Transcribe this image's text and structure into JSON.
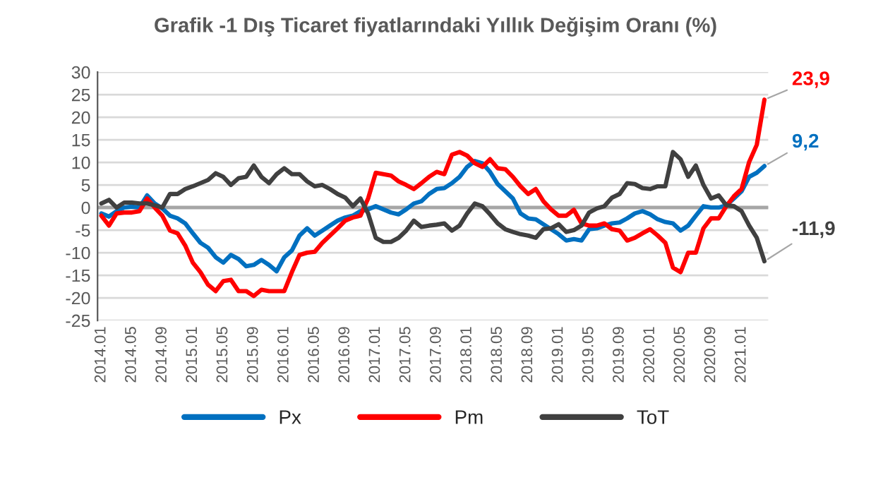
{
  "chart_data": {
    "type": "line",
    "title": "Grafik -1 Dış Ticaret fiyatlarındaki Yıllık Değişim Oranı (%)",
    "categories": [
      "2014.01",
      null,
      null,
      null,
      "2014.05",
      null,
      null,
      null,
      "2014.09",
      null,
      null,
      null,
      "2015.01",
      null,
      null,
      null,
      "2015.05",
      null,
      null,
      null,
      "2015.09",
      null,
      null,
      null,
      "2016.01",
      null,
      null,
      null,
      "2016.05",
      null,
      null,
      null,
      "2016.09",
      null,
      null,
      null,
      "2017.01",
      null,
      null,
      null,
      "2017.05",
      null,
      null,
      null,
      "2017.09",
      null,
      null,
      null,
      "2018.01",
      null,
      null,
      null,
      "2018.05",
      null,
      null,
      null,
      "2018.09",
      null,
      null,
      null,
      "2019.01",
      null,
      null,
      null,
      "2019.05",
      null,
      null,
      null,
      "2019.09",
      null,
      null,
      null,
      "2020.01",
      null,
      null,
      null,
      "2020.05",
      null,
      null,
      null,
      "2020.09",
      null,
      null,
      null,
      "2021.01",
      null,
      null,
      null
    ],
    "series": [
      {
        "name": "Px",
        "color": "#0070c0",
        "values": [
          -1.3,
          -2,
          -0.8,
          0,
          0.2,
          0,
          2.7,
          0.9,
          -0.2,
          -1.8,
          -2.4,
          -3.5,
          -5.7,
          -7.8,
          -8.9,
          -11,
          -12.2,
          -10.5,
          -11.4,
          -13,
          -12.7,
          -11.6,
          -12.7,
          -14.1,
          -11,
          -9.5,
          -6.2,
          -4.6,
          -6.2,
          -5.1,
          -4,
          -2.9,
          -2.2,
          -1.8,
          -0.8,
          -0.4,
          0.3,
          -0.4,
          -1.1,
          -1.5,
          -0.4,
          0.9,
          1.4,
          3,
          4.1,
          4.3,
          5.4,
          6.8,
          9,
          10.3,
          9.8,
          7.9,
          5.2,
          3.6,
          2,
          -1.3,
          -2.4,
          -2.6,
          -3.7,
          -4.8,
          -5.9,
          -7.3,
          -7,
          -7.3,
          -4.8,
          -4.6,
          -4,
          -3.5,
          -3.3,
          -2.4,
          -1.3,
          -0.8,
          -1.5,
          -2.6,
          -3.2,
          -3.5,
          -5.1,
          -4,
          -1.8,
          0.3,
          0,
          0,
          0.5,
          2,
          3.6,
          6.8,
          7.7,
          9.2
        ],
        "value_labels": [
          null,
          null,
          null,
          null,
          null,
          null,
          null,
          null,
          null,
          null,
          null,
          null,
          null,
          null,
          null,
          null,
          null,
          null,
          null,
          null,
          null,
          null,
          null,
          null,
          null,
          null,
          null,
          null,
          null,
          null,
          null,
          null,
          null,
          null,
          null,
          null,
          null,
          null,
          null,
          null,
          null,
          null,
          null,
          null,
          null,
          null,
          null,
          null,
          null,
          null,
          null,
          null,
          null,
          null,
          null,
          null,
          null,
          null,
          null,
          null,
          null,
          null,
          null,
          null,
          null,
          null,
          null,
          null,
          null,
          null,
          null,
          null,
          null,
          null,
          null,
          null,
          null,
          null,
          null,
          null,
          null,
          null,
          null,
          null,
          null,
          null,
          null,
          "9,2"
        ]
      },
      {
        "name": "Pm",
        "color": "#ff0000",
        "values": [
          -1.8,
          -4,
          -1.3,
          -1.1,
          -1.1,
          -0.8,
          2,
          0,
          -1.8,
          -5.1,
          -5.7,
          -8.4,
          -12.2,
          -14.3,
          -17.1,
          -18.5,
          -16.3,
          -16,
          -18.5,
          -18.5,
          -19.6,
          -18.2,
          -18.5,
          -18.5,
          -18.5,
          -14.3,
          -10.5,
          -10,
          -9.8,
          -7.8,
          -6.2,
          -4.6,
          -2.9,
          -2.2,
          -1.8,
          2,
          7.7,
          7.4,
          7.1,
          5.8,
          5,
          4.1,
          5.4,
          6.8,
          7.9,
          7.4,
          11.7,
          12.3,
          11.5,
          9.8,
          9,
          10.7,
          8.7,
          8.5,
          6.8,
          4.7,
          3,
          4.1,
          1.4,
          -0.4,
          -1.8,
          -1.8,
          -0.5,
          -3.5,
          -4,
          -4,
          -3.5,
          -4.8,
          -5.1,
          -7.3,
          -6.7,
          -5.7,
          -4.8,
          -6.2,
          -7.8,
          -13.3,
          -14.3,
          -10,
          -10,
          -4.6,
          -2.4,
          -2.4,
          0.3,
          2.5,
          4.1,
          10.1,
          13.9,
          23.9
        ],
        "value_labels": [
          null,
          null,
          null,
          null,
          null,
          null,
          null,
          null,
          null,
          null,
          null,
          null,
          null,
          null,
          null,
          null,
          null,
          null,
          null,
          null,
          null,
          null,
          null,
          null,
          null,
          null,
          null,
          null,
          null,
          null,
          null,
          null,
          null,
          null,
          null,
          null,
          null,
          null,
          null,
          null,
          null,
          null,
          null,
          null,
          null,
          null,
          null,
          null,
          null,
          null,
          null,
          null,
          null,
          null,
          null,
          null,
          null,
          null,
          null,
          null,
          null,
          null,
          null,
          null,
          null,
          null,
          null,
          null,
          null,
          null,
          null,
          null,
          null,
          null,
          null,
          null,
          null,
          null,
          null,
          null,
          null,
          null,
          null,
          null,
          null,
          null,
          null,
          "23,9"
        ]
      },
      {
        "name": "ToT",
        "color": "#404040",
        "values": [
          0.9,
          1.7,
          0,
          1.1,
          1.1,
          0.9,
          0.9,
          0.5,
          0,
          3,
          3,
          4.1,
          4.7,
          5.4,
          6.1,
          7.6,
          6.8,
          5,
          6.5,
          6.8,
          9.3,
          6.8,
          5.4,
          7.4,
          8.7,
          7.4,
          7.4,
          5.8,
          4.7,
          5,
          4.1,
          3,
          2.2,
          0.3,
          2,
          -1.3,
          -6.7,
          -7.6,
          -7.6,
          -6.7,
          -5.1,
          -2.9,
          -4.3,
          -4,
          -3.8,
          -3.5,
          -5.1,
          -4,
          -1.3,
          0.9,
          0.3,
          -1.5,
          -3.5,
          -4.8,
          -5.4,
          -5.9,
          -6.2,
          -6.7,
          -4.8,
          -4.6,
          -3.7,
          -5.4,
          -5,
          -4,
          -1.1,
          -0.2,
          0.3,
          2.2,
          3,
          5.4,
          5.2,
          4.3,
          4.1,
          4.7,
          4.7,
          12.3,
          10.7,
          6.8,
          9.3,
          5,
          2,
          2.7,
          0.5,
          0.3,
          -0.8,
          -4,
          -6.7,
          -11.9
        ],
        "value_labels": [
          null,
          null,
          null,
          null,
          null,
          null,
          null,
          null,
          null,
          null,
          null,
          null,
          null,
          null,
          null,
          null,
          null,
          null,
          null,
          null,
          null,
          null,
          null,
          null,
          null,
          null,
          null,
          null,
          null,
          null,
          null,
          null,
          null,
          null,
          null,
          null,
          null,
          null,
          null,
          null,
          null,
          null,
          null,
          null,
          null,
          null,
          null,
          null,
          null,
          null,
          null,
          null,
          null,
          null,
          null,
          null,
          null,
          null,
          null,
          null,
          null,
          null,
          null,
          null,
          null,
          null,
          null,
          null,
          null,
          null,
          null,
          null,
          null,
          null,
          null,
          null,
          null,
          null,
          null,
          null,
          null,
          null,
          null,
          null,
          null,
          null,
          null,
          "-11,9"
        ]
      }
    ],
    "ylim": [
      -25,
      30
    ],
    "yticks": [
      -25,
      -20,
      -15,
      -10,
      -5,
      0,
      5,
      10,
      15,
      20,
      25,
      30
    ],
    "ref_lines": [
      {
        "axis": "y",
        "value": 0,
        "color": "#a6a6a6"
      }
    ],
    "grid": "y",
    "legend": "bottom",
    "marker": "none",
    "line_style": "solid"
  }
}
